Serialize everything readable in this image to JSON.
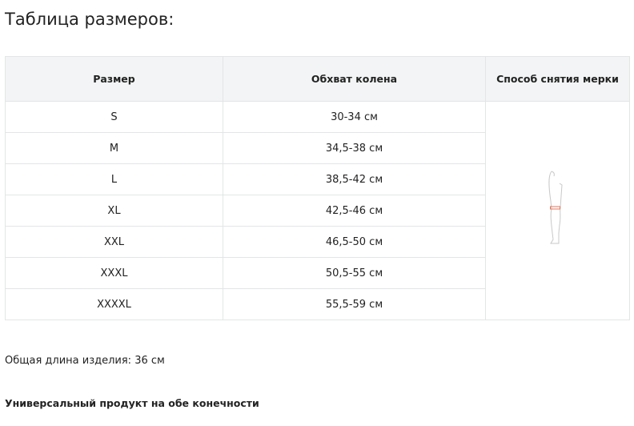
{
  "title": "Таблица размеров:",
  "table": {
    "headers": [
      "Размер",
      "Обхват колена",
      "Способ снятия мерки"
    ],
    "rows": [
      {
        "size": "S",
        "girth": "30-34 см"
      },
      {
        "size": "M",
        "girth": "34,5-38 см"
      },
      {
        "size": "L",
        "girth": "38,5-42 см"
      },
      {
        "size": "XL",
        "girth": "42,5-46 см"
      },
      {
        "size": "XXL",
        "girth": "46,5-50 см"
      },
      {
        "size": "XXXL",
        "girth": "50,5-55 см"
      },
      {
        "size": "XXXXL",
        "girth": "55,5-59 см"
      }
    ],
    "measure_icon": "leg-knee-measure-icon",
    "measure_color": "#e8735a"
  },
  "length_text": "Общая длина изделия: 36 см",
  "universal_text": "Универсальный продукт на обе конечности"
}
